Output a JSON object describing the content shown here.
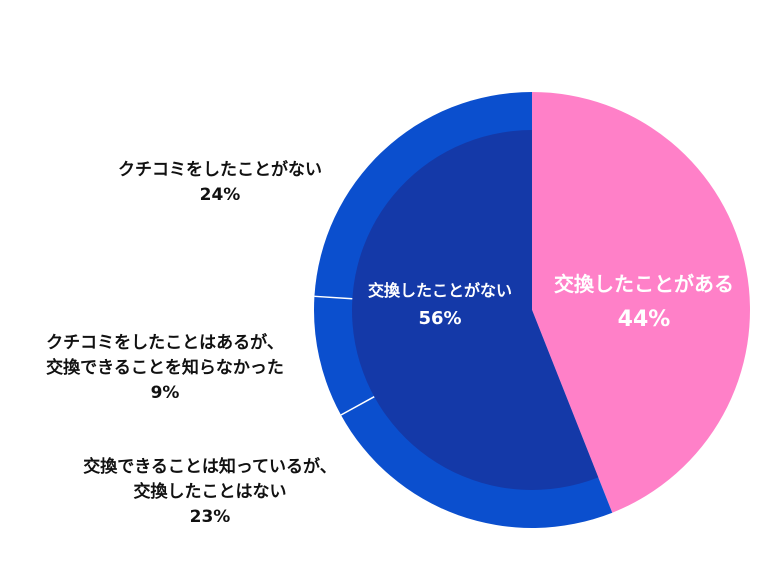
{
  "chart_data": {
    "type": "pie",
    "outer": [
      {
        "label": "交換したことがある",
        "value": 44,
        "color": "#ff80c8"
      },
      {
        "label": "交換できることは知っているが、交換したことはない",
        "value": 23,
        "color": "#0b4fce"
      },
      {
        "label": "クチコミをしたことはあるが、交換できることを知らなかった",
        "value": 9,
        "color": "#0b4fce"
      },
      {
        "label": "クチコミをしたことがない",
        "value": 24,
        "color": "#0b4fce"
      }
    ],
    "inner": [
      {
        "label": "交換したことがない",
        "value": 56,
        "color": "#1439a8"
      }
    ]
  },
  "labels": {
    "has_exchanged": {
      "line1": "交換したことがある",
      "pct": "44%"
    },
    "not_exchanged": {
      "line1": "交換したことがない",
      "pct": "56%"
    },
    "no_review": {
      "line1": "クチコミをしたことがない",
      "pct": "24%"
    },
    "review_unaware": {
      "line1": "クチコミをしたことはあるが、",
      "line2": "交換できることを知らなかった",
      "pct": "9%"
    },
    "aware_not_exchanged": {
      "line1": "交換できることは知っているが、",
      "line2": "交換したことはない",
      "pct": "23%"
    }
  }
}
